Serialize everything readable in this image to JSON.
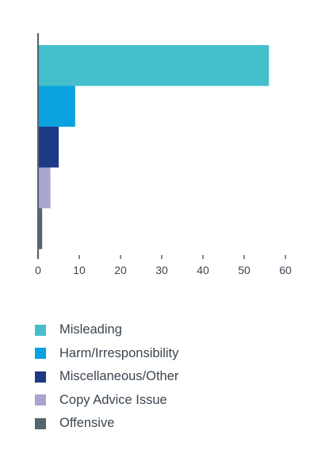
{
  "chart_data": {
    "type": "bar",
    "orientation": "horizontal",
    "categories": [
      "Misleading",
      "Harm/Irresponsibility",
      "Miscellaneous/Other",
      "Copy Advice Issue",
      "Offensive"
    ],
    "values": [
      56,
      9,
      5,
      3,
      1
    ],
    "colors": [
      "#45bfcb",
      "#0aa2df",
      "#1c3a85",
      "#a9a4d2",
      "#56646e"
    ],
    "xlim": [
      0,
      60
    ],
    "xticks": [
      0,
      10,
      20,
      30,
      40,
      50,
      60
    ],
    "grid": false,
    "legend_position": "bottom",
    "title": "",
    "xlabel": "",
    "ylabel": ""
  },
  "legend": {
    "items": [
      {
        "label": "Misleading",
        "color": "#45bfcb"
      },
      {
        "label": "Harm/Irresponsibility",
        "color": "#0aa2df"
      },
      {
        "label": "Miscellaneous/Other",
        "color": "#1c3a85"
      },
      {
        "label": "Copy Advice Issue",
        "color": "#a9a4d2"
      },
      {
        "label": "Offensive",
        "color": "#56646e"
      }
    ]
  }
}
